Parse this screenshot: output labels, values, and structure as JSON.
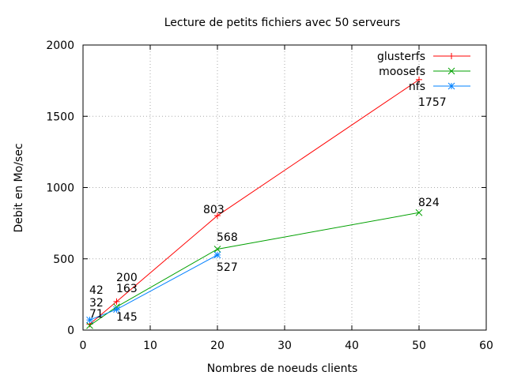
{
  "chart_data": {
    "type": "line",
    "title": "Lecture de petits fichiers avec 50 serveurs",
    "xlabel": "Nombres de noeuds clients",
    "ylabel": "Debit en Mo/sec",
    "xlim": [
      0,
      60
    ],
    "ylim": [
      0,
      2000
    ],
    "xticks": [
      0,
      10,
      20,
      30,
      40,
      50,
      60
    ],
    "yticks": [
      0,
      500,
      1000,
      1500,
      2000
    ],
    "grid": true,
    "legend_position": "top-right",
    "series": [
      {
        "name": "glusterfs",
        "color": "#ff0000",
        "marker": "plus",
        "points": [
          {
            "x": 1,
            "y": 42
          },
          {
            "x": 5,
            "y": 200
          },
          {
            "x": 20,
            "y": 803
          },
          {
            "x": 50,
            "y": 1757
          }
        ]
      },
      {
        "name": "moosefs",
        "color": "#00a000",
        "marker": "cross",
        "points": [
          {
            "x": 1,
            "y": 32
          },
          {
            "x": 5,
            "y": 163
          },
          {
            "x": 20,
            "y": 568
          },
          {
            "x": 50,
            "y": 824
          }
        ]
      },
      {
        "name": "nfs",
        "color": "#0080ff",
        "marker": "star",
        "points": [
          {
            "x": 1,
            "y": 71
          },
          {
            "x": 5,
            "y": 145
          },
          {
            "x": 20,
            "y": 527
          }
        ]
      }
    ],
    "data_labels": [
      "42",
      "32",
      "71",
      "200",
      "163",
      "145",
      "803",
      "568",
      "527",
      "1757",
      "824"
    ]
  }
}
